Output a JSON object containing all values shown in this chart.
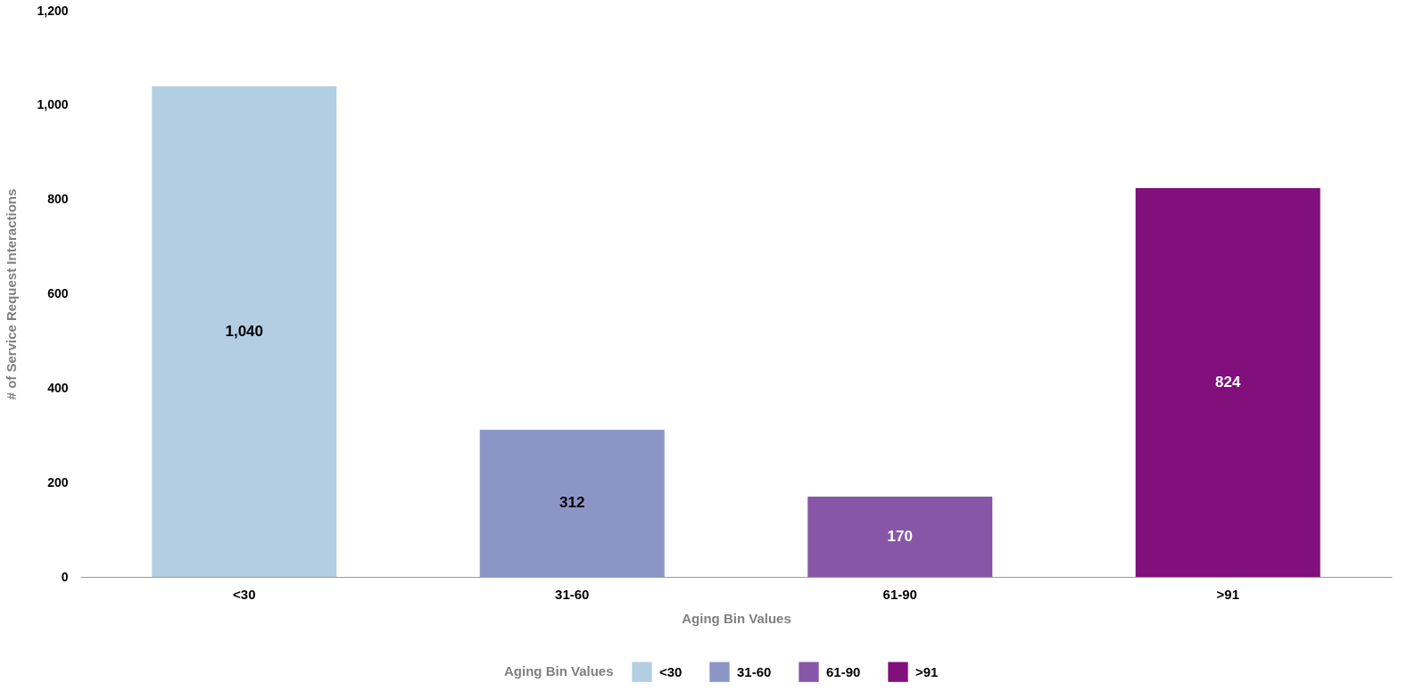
{
  "chart_data": {
    "type": "bar",
    "xlabel": "Aging Bin Values",
    "ylabel": "# of Service Request Interactions",
    "legend_title": "Aging Bin Values",
    "categories": [
      "<30",
      "31-60",
      "61-90",
      ">91"
    ],
    "series": [
      {
        "name": "<30",
        "color": "#b3cde3",
        "values": [
          1040,
          null,
          null,
          null
        ],
        "value_labels": [
          "1,040",
          null,
          null,
          null
        ]
      },
      {
        "name": "31-60",
        "color": "#8c96c6",
        "values": [
          null,
          312,
          null,
          null
        ],
        "value_labels": [
          null,
          "312",
          null,
          null
        ]
      },
      {
        "name": "61-90",
        "color": "#8856a7",
        "values": [
          null,
          null,
          170,
          null
        ],
        "value_labels": [
          null,
          null,
          "170",
          null
        ]
      },
      {
        "name": ">91",
        "color": "#810f7c",
        "values": [
          null,
          null,
          null,
          824
        ],
        "value_labels": [
          null,
          null,
          null,
          "824"
        ]
      }
    ],
    "ylim": [
      0,
      1200
    ],
    "yticks": [
      0,
      200,
      400,
      600,
      800,
      {
        "value": 1000,
        "label": "1,000"
      },
      {
        "value": 1200,
        "label": "1,200"
      }
    ],
    "grid": false,
    "legend": "bottom"
  }
}
